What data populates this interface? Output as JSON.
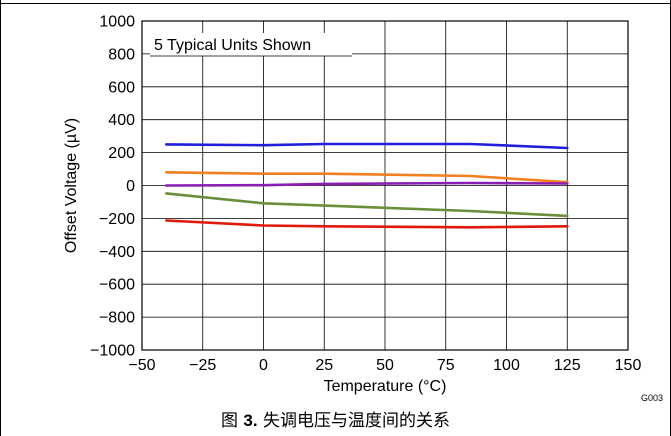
{
  "chart_data": {
    "type": "line",
    "title": "",
    "xlabel": "Temperature (°C)",
    "ylabel": "Offset Voltage (µV)",
    "xlim": [
      -50,
      150
    ],
    "ylim": [
      -1000,
      1000
    ],
    "x_ticks": [
      -50,
      -25,
      0,
      25,
      50,
      75,
      100,
      125,
      150
    ],
    "y_ticks": [
      -1000,
      -800,
      -600,
      -400,
      -200,
      0,
      200,
      400,
      600,
      800,
      1000
    ],
    "x_tick_labels": [
      "−50",
      "−25",
      "0",
      "25",
      "50",
      "75",
      "100",
      "125",
      "150"
    ],
    "y_tick_labels": [
      "−1000",
      "−800",
      "−600",
      "−400",
      "−200",
      "0",
      "200",
      "400",
      "600",
      "800",
      "1000"
    ],
    "grid": true,
    "annotation": "5 Typical Units Shown",
    "code": "G003",
    "series": [
      {
        "color": "#1f1fdc",
        "x": [
          -40,
          0,
          25,
          85,
          125
        ],
        "y": [
          250,
          245,
          252,
          252,
          228
        ]
      },
      {
        "color": "#f08020",
        "x": [
          -40,
          0,
          25,
          85,
          125
        ],
        "y": [
          80,
          72,
          72,
          58,
          20
        ]
      },
      {
        "color": "#8a1eb4",
        "x": [
          -40,
          0,
          25,
          85,
          125
        ],
        "y": [
          0,
          2,
          10,
          15,
          12
        ]
      },
      {
        "color": "#6b8e3a",
        "x": [
          -40,
          0,
          25,
          85,
          125
        ],
        "y": [
          -48,
          -108,
          -122,
          -155,
          -185
        ]
      },
      {
        "color": "#e01a0a",
        "x": [
          -40,
          0,
          25,
          85,
          125
        ],
        "y": [
          -213,
          -243,
          -248,
          -254,
          -248
        ]
      }
    ]
  },
  "caption": {
    "prefix": "图 ",
    "number": "3.",
    "text": " 失调电压与温度间的关系"
  }
}
